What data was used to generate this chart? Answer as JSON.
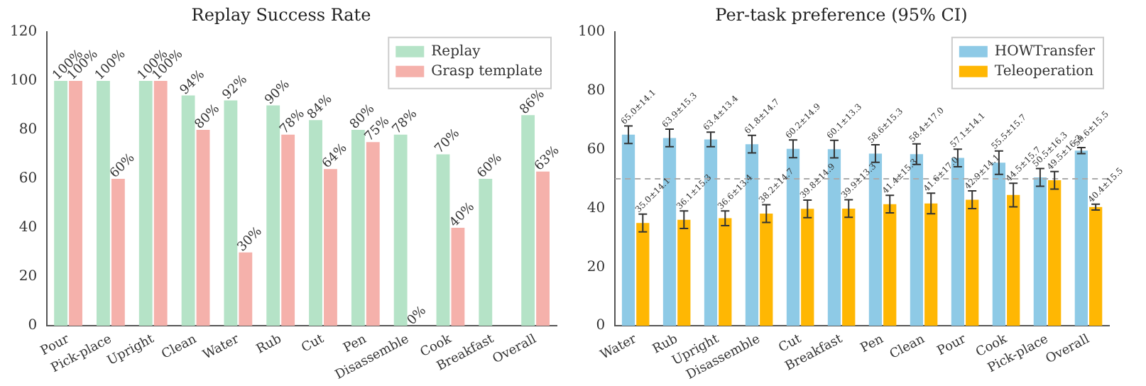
{
  "chart_data": [
    {
      "type": "bar",
      "title": "Replay Success Rate",
      "categories": [
        "Pour",
        "Pick-place",
        "Upright",
        "Clean",
        "Water",
        "Rub",
        "Cut",
        "Pen",
        "Disassemble",
        "Cook",
        "Breakfast",
        "Overall"
      ],
      "series": [
        {
          "name": "Replay",
          "color": "#b5e3c7",
          "values": [
            100,
            100,
            100,
            94,
            92,
            90,
            84,
            80,
            78,
            70,
            60,
            86
          ],
          "value_labels": [
            "100%",
            "100%",
            "100%",
            "94%",
            "92%",
            "90%",
            "84%",
            "80%",
            "78%",
            "70%",
            "60%",
            "86%"
          ]
        },
        {
          "name": "Grasp template",
          "color": "#f5b1ab",
          "values": [
            100,
            60,
            100,
            80,
            30,
            78,
            64,
            75,
            0,
            40,
            null,
            63
          ],
          "value_labels": [
            "100%",
            "60%",
            "100%",
            "80%",
            "30%",
            "78%",
            "64%",
            "75%",
            "0%",
            "40%",
            null,
            "63%"
          ]
        }
      ],
      "ylim": [
        0,
        120
      ],
      "yticks": [
        0,
        20,
        40,
        60,
        80,
        100,
        120
      ],
      "legend": "top right"
    },
    {
      "type": "bar",
      "title": "Per-task preference (95% CI)",
      "categories": [
        "Water",
        "Rub",
        "Upright",
        "Disassemble",
        "Cut",
        "Breakfast",
        "Pen",
        "Clean",
        "Pour",
        "Cook",
        "Pick-place",
        "Overall"
      ],
      "series": [
        {
          "name": "HOWTransfer",
          "color": "#8ecae6",
          "values": [
            65.0,
            63.9,
            63.4,
            61.8,
            60.2,
            60.1,
            58.6,
            58.4,
            57.1,
            55.5,
            50.5,
            59.6
          ],
          "errors": [
            3,
            3,
            2.5,
            3,
            3,
            3,
            3,
            3.5,
            3,
            4,
            3,
            1
          ],
          "value_labels": [
            "65.0±14.1",
            "63.9±15.3",
            "63.4±13.4",
            "61.8±14.7",
            "60.2±14.9",
            "60.1±13.3",
            "58.6±15.3",
            "58.4±17.0",
            "57.1±14.1",
            "55.5±15.7",
            "50.5±16.3",
            "59.6±15.5"
          ]
        },
        {
          "name": "Teleoperation",
          "color": "#ffb703",
          "values": [
            35.0,
            36.1,
            36.6,
            38.2,
            39.8,
            39.9,
            41.4,
            41.6,
            42.9,
            44.5,
            49.5,
            40.4
          ],
          "errors": [
            3,
            3,
            2.5,
            3,
            3,
            3,
            3,
            3.5,
            3,
            4,
            3,
            1
          ],
          "value_labels": [
            "35.0±14.1",
            "36.1±15.3",
            "36.6±13.4",
            "38.2±14.7",
            "39.8±14.9",
            "39.9±13.3",
            "41.4±15.3",
            "41.6±17.0",
            "42.9±14.1",
            "44.5±15.7",
            "49.5±16.3",
            "40.4±15.5"
          ]
        }
      ],
      "ylim": [
        0,
        100
      ],
      "yticks": [
        0,
        20,
        40,
        60,
        80,
        100
      ],
      "legend": "top right",
      "ref_lines": [
        {
          "axis": "y",
          "value": 50,
          "color": "#aaaaaa",
          "line_style": "dashed"
        }
      ]
    }
  ]
}
